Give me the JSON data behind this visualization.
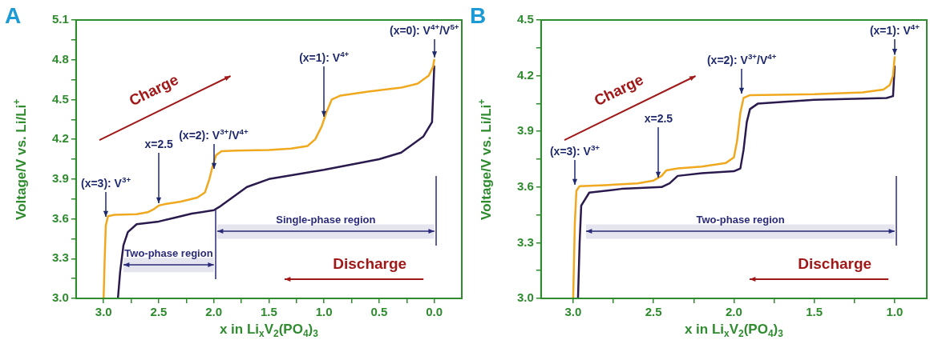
{
  "chart_data": [
    {
      "type": "line",
      "title": "A",
      "xlabel": "x in Li$_{x}$V$_{2}$(PO$_{4}$)$_{3}$",
      "ylabel": "Voltage/V vs. Li/Li$^{+}$",
      "marker": "none",
      "xlim": [
        3.25,
        -0.25
      ],
      "ylim": [
        3.0,
        5.1
      ],
      "xticks": [
        {
          "value": 3,
          "label": "3.0"
        },
        {
          "value": 2.75,
          "label": null
        },
        2.5,
        {
          "value": 2.25,
          "label": null
        },
        {
          "value": 2,
          "label": "2.0"
        },
        {
          "value": 1.75,
          "label": null
        },
        1.5,
        {
          "value": 1.25,
          "label": null
        },
        {
          "value": 1,
          "label": "1.0"
        },
        {
          "value": 0.75,
          "label": null
        },
        0.5,
        {
          "value": 0.25,
          "label": null
        },
        {
          "value": 0,
          "label": "0.0"
        }
      ],
      "yticks": [
        {
          "value": 3,
          "label": "3.0"
        },
        {
          "value": 3.15,
          "label": null
        },
        3.3,
        {
          "value": 3.45,
          "label": null
        },
        3.6,
        {
          "value": 3.75,
          "label": null
        },
        3.9,
        {
          "value": 4.05,
          "label": null
        },
        4.2,
        {
          "value": 4.35,
          "label": null
        },
        4.5,
        {
          "value": 4.65,
          "label": null
        },
        4.8,
        {
          "value": 4.95,
          "label": null
        },
        5.1
      ],
      "series": [
        {
          "color": "#f0a81e",
          "x": [
            3.0,
            2.99,
            2.98,
            2.96,
            2.9,
            2.7,
            2.6,
            2.55,
            2.5,
            2.45,
            2.3,
            2.15,
            2.08,
            2.04,
            2.01,
            1.98,
            1.93,
            1.8,
            1.5,
            1.3,
            1.15,
            1.08,
            1.02,
            0.98,
            0.93,
            0.85,
            0.6,
            0.3,
            0.15,
            0.05,
            0.01,
            0.0
          ],
          "values": [
            3.0,
            3.3,
            3.55,
            3.62,
            3.63,
            3.635,
            3.65,
            3.67,
            3.7,
            3.71,
            3.73,
            3.76,
            3.8,
            3.9,
            4.0,
            4.08,
            4.11,
            4.115,
            4.12,
            4.13,
            4.15,
            4.2,
            4.3,
            4.4,
            4.5,
            4.53,
            4.56,
            4.59,
            4.62,
            4.68,
            4.75,
            4.8
          ]
        },
        {
          "color": "#2b1a4e",
          "x": [
            0.0,
            0.02,
            0.1,
            0.3,
            0.5,
            1.0,
            1.5,
            1.7,
            1.85,
            1.95,
            2.0,
            2.2,
            2.35,
            2.5,
            2.7,
            2.78,
            2.82,
            2.85,
            2.87
          ],
          "values": [
            4.75,
            4.33,
            4.22,
            4.1,
            4.05,
            3.97,
            3.9,
            3.84,
            3.75,
            3.69,
            3.665,
            3.64,
            3.61,
            3.58,
            3.56,
            3.5,
            3.4,
            3.2,
            3.0
          ]
        }
      ],
      "annotations": [
        {
          "text": "(x=3): V$^{3+}$",
          "x": 2.98,
          "y": 3.6
        },
        {
          "text": "x=2.5",
          "x": 2.5,
          "y": 3.7
        },
        {
          "text": "(x=2): V$^{3+}$/V$^{4+}$",
          "x": 2.0,
          "y": 3.96
        },
        {
          "text": "(x=1): V$^{4+}$",
          "x": 1.0,
          "y": 4.35
        },
        {
          "text": "(x=0): V$^{4+}$/V$^{5+}$",
          "x": 0.0,
          "y": 4.8
        },
        "Charge",
        "Discharge"
      ],
      "bands": [
        {
          "axis": "x",
          "from": 1.97,
          "to": 0.0,
          "label": "Single-phase region",
          "color": "#2a2a7a"
        },
        {
          "axis": "x",
          "from": 2.82,
          "to": 2.0,
          "label": "Two-phase region",
          "color": "#2a2a7a"
        }
      ]
    },
    {
      "type": "line",
      "title": "B",
      "xlabel": "x in Li$_{x}$V$_{2}$(PO$_{4}$)$_{3}$",
      "ylabel": "Voltage/V vs. Li/Li$^{+}$",
      "marker": "none",
      "xlim": [
        3.2,
        0.8
      ],
      "ylim": [
        3.0,
        4.5
      ],
      "xticks": [
        {
          "value": 3,
          "label": "3.0"
        },
        {
          "value": 2.75,
          "label": null
        },
        2.5,
        {
          "value": 2.25,
          "label": null
        },
        {
          "value": 2,
          "label": "2.0"
        },
        {
          "value": 1.75,
          "label": null
        },
        1.5,
        {
          "value": 1.25,
          "label": null
        },
        {
          "value": 1,
          "label": "1.0"
        }
      ],
      "yticks": [
        {
          "value": 3,
          "label": "3.0"
        },
        {
          "value": 3.15,
          "label": null
        },
        3.3,
        {
          "value": 3.45,
          "label": null
        },
        3.6,
        {
          "value": 3.75,
          "label": null
        },
        3.9,
        {
          "value": 4.05,
          "label": null
        },
        4.2,
        {
          "value": 4.35,
          "label": null
        },
        4.5
      ],
      "series": [
        {
          "color": "#f0a81e",
          "x": [
            3.0,
            2.99,
            2.98,
            2.96,
            2.8,
            2.6,
            2.5,
            2.45,
            2.42,
            2.35,
            2.2,
            2.05,
            2.0,
            1.98,
            1.96,
            1.94,
            1.9,
            1.5,
            1.2,
            1.07,
            1.03,
            1.01,
            1.0
          ],
          "values": [
            3.0,
            3.4,
            3.58,
            3.605,
            3.61,
            3.62,
            3.635,
            3.66,
            3.69,
            3.7,
            3.71,
            3.73,
            3.76,
            3.85,
            4.0,
            4.08,
            4.095,
            4.1,
            4.11,
            4.125,
            4.15,
            4.2,
            4.3
          ]
        },
        {
          "color": "#2b1a4e",
          "x": [
            1.0,
            1.01,
            1.05,
            1.5,
            1.85,
            1.9,
            1.92,
            1.94,
            1.96,
            2.0,
            2.2,
            2.35,
            2.4,
            2.45,
            2.7,
            2.9,
            2.95,
            2.96,
            2.97
          ],
          "values": [
            4.25,
            4.09,
            4.08,
            4.07,
            4.05,
            4.02,
            3.95,
            3.8,
            3.7,
            3.685,
            3.675,
            3.66,
            3.62,
            3.6,
            3.59,
            3.57,
            3.5,
            3.3,
            3.0
          ]
        }
      ],
      "annotations": [
        {
          "text": "(x=3): V$^{3+}$",
          "x": 2.99,
          "y": 3.6
        },
        {
          "text": "x=2.5",
          "x": 2.47,
          "y": 3.64
        },
        {
          "text": "(x=2): V$^{3+}$/V$^{4+}$",
          "x": 1.95,
          "y": 4.09
        },
        {
          "text": "(x=1): V$^{4+}$",
          "x": 1.0,
          "y": 4.3
        },
        "Charge",
        "Discharge"
      ],
      "bands": [
        {
          "axis": "x",
          "from": 2.92,
          "to": 1.0,
          "label": "Two-phase region",
          "color": "#2a2a7a"
        }
      ]
    }
  ]
}
